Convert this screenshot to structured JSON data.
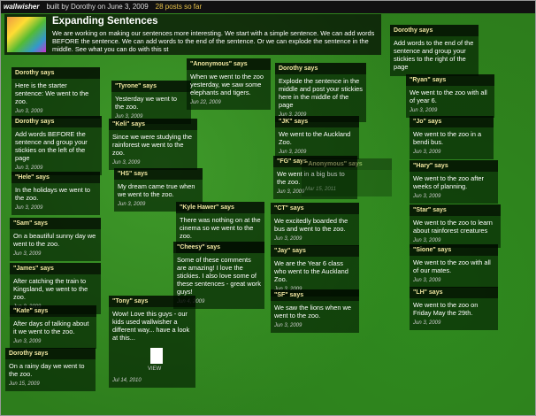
{
  "topbar": {
    "logo": "wallwisher",
    "built_by": "built by Dorothy on June 3, 2009",
    "post_count": "28 posts so far"
  },
  "header": {
    "title": "Expanding Sentences",
    "description": "We are working on making our sentences more interesting. We start with a simple sentence. We can add words BEFORE the sentence. We can add words to the end of the sentence. Or we can explode the sentence in the middle. See what you can do with this st"
  },
  "notes": [
    {
      "author": "Dorothy says",
      "text": "Add words to the end of the sentence and group your stickies to the right of the page"
    },
    {
      "author": "Dorothy says",
      "text": "Here is the starter sentence: We went to the zoo.",
      "date": "Jun 3, 2009"
    },
    {
      "author": "\"Tyrone\" says",
      "text": "Yesterday we went to the zoo.",
      "date": "Jun 3, 2009"
    },
    {
      "author": "\"Anonymous\" says",
      "text": "When we went to the zoo yesterday, we saw some elephants and tigers.",
      "date": "Jun 22, 2009"
    },
    {
      "author": "Dorothy says",
      "text": "Explode the sentence in the middle and post your stickies here in the middle of the page",
      "date": "Jun 3, 2009"
    },
    {
      "author": "\"Ryan\" says",
      "text": "We went to the zoo with all of year 6.",
      "date": "Jun 3, 2009"
    },
    {
      "author": "Dorothy says",
      "text": "Add words BEFORE the sentence and group your stickies on the left of the page",
      "date": "Jun 3, 2009"
    },
    {
      "author": "\"Keli\" says",
      "text": "Since we were studying the rainforest we went to the zoo.",
      "date": "Jun 3, 2009"
    },
    {
      "author": "\"JK\" says",
      "text": "We went to the Auckland Zoo.",
      "date": "Jun 3, 2009"
    },
    {
      "author": "\"Jo\" says",
      "text": "We went to the zoo in a bendi bus.",
      "date": "Jun 3, 2009"
    },
    {
      "author": "\"FG\" says",
      "text": "We went in a big bus to the zoo.",
      "date": "Jun 3, 2009"
    },
    {
      "author": "\"Anonymous\" says",
      "text": "",
      "date": "Mar 15, 2011"
    },
    {
      "author": "\"Hary\" says",
      "text": "We went to the zoo after weeks of planning.",
      "date": "Jun 3, 2009"
    },
    {
      "author": "\"Hele\" says",
      "text": "In the holidays we went to the zoo.",
      "date": "Jun 3, 2009"
    },
    {
      "author": "\"HS\" says",
      "text": "My dream came true when we went to the zoo.",
      "date": "Jun 3, 2009"
    },
    {
      "author": "\"Kyle Hawer\" says",
      "text": "There was nothing on at the cinema so we went to the zoo.",
      "date": "Jun 3, 2009"
    },
    {
      "author": "\"CT\" says",
      "text": "We excitedly boarded the bus and went to the zoo.",
      "date": "Jun 3, 2009"
    },
    {
      "author": "\"Star\" says",
      "text": "We went to the zoo to learn about rainforest creatures",
      "date": "Jun 3, 2009"
    },
    {
      "author": "\"Sam\" says",
      "text": "On a beautiful sunny day we went to the zoo.",
      "date": "Jun 3, 2009"
    },
    {
      "author": "\"Cheesy\" says",
      "text": "Some of these comments are amazing! I love the stickies. I also love some of these sentences - great work guys!",
      "date": "Jun 4, 2009"
    },
    {
      "author": "\"Jay\" says",
      "text": "We are the Year 6 class who went to the Auckland Zoo.",
      "date": "Jun 3, 2009"
    },
    {
      "author": "\"Sione\" says",
      "text": "We went to the zoo with all of our mates.",
      "date": "Jun 3, 2009"
    },
    {
      "author": "\"James\" says",
      "text": "After catching the train to Kingsland, we went to the zoo.",
      "date": "Jun 3, 2009"
    },
    {
      "author": "\"Tony\" says",
      "text": "Wow! Love this guys - our kids used wallwisher a different way... have a look at this...",
      "date": "Jul 14, 2010",
      "attachment": "VIEW"
    },
    {
      "author": "\"SF\" says",
      "text": "We saw the lions when we went to the zoo.",
      "date": "Jun 3, 2009"
    },
    {
      "author": "\"LH\" says",
      "text": "We went to the zoo on Friday May the 29th.",
      "date": "Jun 3, 2009"
    },
    {
      "author": "\"Kate\" says",
      "text": "After days of talking about it we went to the zoo.",
      "date": "Jun 3, 2009"
    },
    {
      "author": "Dorothy says",
      "text": "On a rainy day we went to the zoo.",
      "date": "Jun 15, 2009"
    }
  ]
}
